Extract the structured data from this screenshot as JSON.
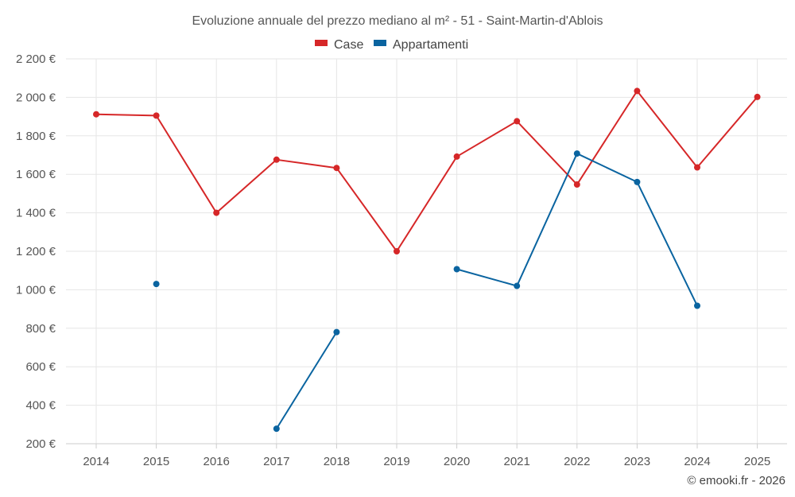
{
  "chart_data": {
    "type": "line",
    "title": "Evoluzione annuale del prezzo mediano al m² - 51 - Saint-Martin-d'Ablois",
    "x": [
      2014,
      2015,
      2016,
      2017,
      2018,
      2019,
      2020,
      2021,
      2022,
      2023,
      2024,
      2025
    ],
    "series": [
      {
        "name": "Case",
        "color": "#d62728",
        "values": [
          1912,
          1905,
          1400,
          1676,
          1633,
          1200,
          1692,
          1876,
          1547,
          2033,
          1636,
          2002
        ]
      },
      {
        "name": "Appartamenti",
        "color": "#0a64a0",
        "values": [
          null,
          1030,
          null,
          278,
          780,
          null,
          1107,
          1020,
          1708,
          1560,
          917,
          null
        ]
      }
    ],
    "ylim": [
      200,
      2200
    ],
    "yticks": [
      200,
      400,
      600,
      800,
      1000,
      1200,
      1400,
      1600,
      1800,
      2000,
      2200
    ],
    "ytick_labels": [
      "200 €",
      "400 €",
      "600 €",
      "800 €",
      "1 000 €",
      "1 200 €",
      "1 400 €",
      "1 600 €",
      "1 800 €",
      "2 000 €",
      "2 200 €"
    ],
    "xlabel": "",
    "ylabel": "",
    "legend_position": "top-center",
    "grid": true
  },
  "credit": "© emooki.fr - 2026"
}
